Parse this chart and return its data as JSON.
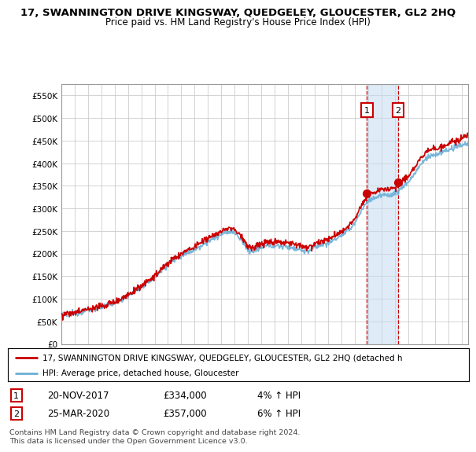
{
  "title": "17, SWANNINGTON DRIVE KINGSWAY, QUEDGELEY, GLOUCESTER, GL2 2HQ",
  "subtitle": "Price paid vs. HM Land Registry's House Price Index (HPI)",
  "ylim": [
    0,
    575000
  ],
  "yticks": [
    0,
    50000,
    100000,
    150000,
    200000,
    250000,
    300000,
    350000,
    400000,
    450000,
    500000,
    550000
  ],
  "ytick_labels": [
    "£0",
    "£50K",
    "£100K",
    "£150K",
    "£200K",
    "£250K",
    "£300K",
    "£350K",
    "£400K",
    "£450K",
    "£500K",
    "£550K"
  ],
  "xlim_start": 1995.0,
  "xlim_end": 2025.5,
  "hpi_color": "#6baed6",
  "price_color": "#cc0000",
  "annotation_box_color": "#cc0000",
  "shade_color": "#c6dbef",
  "transaction1_x": 2017.9,
  "transaction2_x": 2020.25,
  "t1_y": 334000,
  "t2_y": 357000,
  "legend_line1": "17, SWANNINGTON DRIVE KINGSWAY, QUEDGELEY, GLOUCESTER, GL2 2HQ (detached h",
  "legend_line2": "HPI: Average price, detached house, Gloucester",
  "table_row1": [
    "1",
    "20-NOV-2017",
    "£334,000",
    "4% ↑ HPI"
  ],
  "table_row2": [
    "2",
    "25-MAR-2020",
    "£357,000",
    "6% ↑ HPI"
  ],
  "footer": "Contains HM Land Registry data © Crown copyright and database right 2024.\nThis data is licensed under the Open Government Licence v3.0.",
  "background_color": "#ffffff",
  "grid_color": "#cccccc"
}
